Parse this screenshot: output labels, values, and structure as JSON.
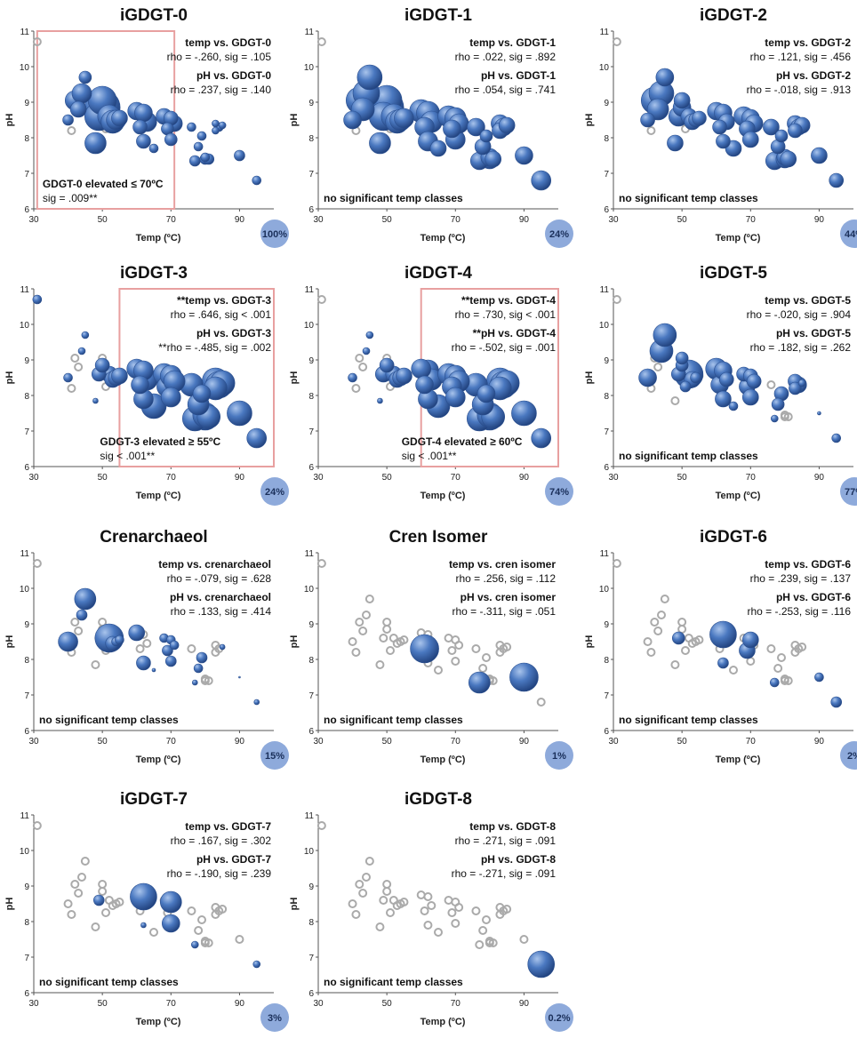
{
  "axes": {
    "xlabel": "Temp (ºC)",
    "ylabel": "pH",
    "xlim": [
      30,
      100
    ],
    "ylim": [
      6,
      11
    ],
    "xticks": [
      "30",
      "50",
      "70",
      "90"
    ],
    "yticks": [
      "6",
      "7",
      "8",
      "9",
      "10",
      "11"
    ]
  },
  "colors": {
    "bubble": "#3f6eb5",
    "hollow": "#aaaaaa",
    "badge": "#8eaadb",
    "box": "#e8a0a0"
  },
  "chart_data": {
    "type": "scatter",
    "description_points": "shared samples: temperature (x) vs pH (y)",
    "x": [
      31,
      40,
      41,
      42,
      43,
      44,
      45,
      48,
      49,
      50,
      50,
      51,
      52,
      53,
      54,
      55,
      60,
      61,
      62,
      62,
      63,
      65,
      68,
      69,
      70,
      70,
      71,
      76,
      77,
      78,
      79,
      80,
      80,
      81,
      83,
      83,
      84,
      85,
      90,
      95
    ],
    "y": [
      10.7,
      8.5,
      8.2,
      9.05,
      8.8,
      9.25,
      9.7,
      7.85,
      8.6,
      8.85,
      9.05,
      8.25,
      8.6,
      8.45,
      8.5,
      8.55,
      8.75,
      8.3,
      7.9,
      8.7,
      8.45,
      7.7,
      8.6,
      8.25,
      7.95,
      8.55,
      8.4,
      8.3,
      7.35,
      7.75,
      8.05,
      7.4,
      7.45,
      7.4,
      8.4,
      8.2,
      8.3,
      8.35,
      7.5,
      6.8
    ],
    "panels": [
      {
        "title": "iGDGT-0",
        "badge": "100%",
        "stats": [
          {
            "line1": "temp vs. GDGT-0",
            "line2": "rho = -.260, sig = .105"
          },
          {
            "line1": "pH vs. GDGT-0",
            "line2": "rho = .237, sig = .140"
          }
        ],
        "note": [
          "GDGT-0 elevated ≤ 70ºC",
          "sig = .009**"
        ],
        "box": [
          31,
          71
        ],
        "sizes": [
          0,
          6,
          0,
          11,
          9,
          11,
          7,
          12,
          16,
          20,
          16,
          0,
          13,
          13,
          11,
          9,
          10,
          8,
          8,
          10,
          11,
          5,
          9,
          7,
          7,
          8,
          9,
          5,
          6,
          5,
          5,
          6,
          5,
          6,
          4,
          4,
          5,
          4,
          6,
          5
        ]
      },
      {
        "title": "iGDGT-1",
        "badge": "24%",
        "stats": [
          {
            "line1": "temp vs. GDGT-1",
            "line2": "rho = .022, sig = .892"
          },
          {
            "line1": "pH vs. GDGT-1",
            "line2": "rho = .054, sig = .741"
          }
        ],
        "note": [
          "no significant temp classes"
        ],
        "sizes": [
          0,
          10,
          0,
          15,
          13,
          15,
          14,
          12,
          16,
          19,
          17,
          0,
          14,
          13,
          12,
          11,
          13,
          11,
          11,
          13,
          12,
          9,
          12,
          10,
          11,
          12,
          11,
          10,
          10,
          9,
          7,
          11,
          10,
          9,
          10,
          9,
          10,
          9,
          10,
          11
        ]
      },
      {
        "title": "iGDGT-2",
        "badge": "44%",
        "stats": [
          {
            "line1": "temp vs. GDGT-2",
            "line2": "rho = .121, sig = .456"
          },
          {
            "line1": "pH vs. GDGT-2",
            "line2": "rho = -.018, sig = .913"
          }
        ],
        "note": [
          "no significant temp classes"
        ],
        "sizes": [
          0,
          8,
          0,
          15,
          12,
          14,
          10,
          9,
          11,
          10,
          9,
          0,
          9,
          9,
          8,
          8,
          10,
          8,
          8,
          10,
          9,
          9,
          11,
          9,
          9,
          10,
          10,
          9,
          10,
          8,
          7,
          10,
          9,
          9,
          9,
          8,
          9,
          9,
          9,
          8
        ]
      },
      {
        "title": "iGDGT-3",
        "badge": "24%",
        "stats": [
          {
            "line1": "**temp vs. GDGT-3",
            "line2": "rho = .646, sig < .001"
          },
          {
            "line1": "pH vs. GDGT-3",
            "line2": "**rho = -.485, sig = .002"
          }
        ],
        "note": [
          "GDGT-3 elevated ≥ 55ºC",
          "sig < .001**"
        ],
        "box": [
          55,
          100
        ],
        "sizes": [
          5,
          5,
          0,
          0,
          0,
          4,
          4,
          3,
          8,
          8,
          0,
          0,
          9,
          9,
          9,
          9,
          11,
          10,
          11,
          11,
          12,
          14,
          12,
          12,
          11,
          12,
          12,
          13,
          14,
          12,
          10,
          15,
          14,
          13,
          15,
          13,
          15,
          14,
          14,
          11
        ]
      },
      {
        "title": "iGDGT-4",
        "badge": "74%",
        "stats": [
          {
            "line1": "**temp vs. GDGT-4",
            "line2": "rho = .730, sig < .001"
          },
          {
            "line1": "**pH vs. GDGT-4",
            "line2": "rho = -.502, sig = .001"
          }
        ],
        "note": [
          "GDGT-4 elevated ≥ 60ºC",
          "sig < .001**"
        ],
        "box": [
          60,
          100
        ],
        "sizes": [
          0,
          5,
          0,
          0,
          0,
          4,
          4,
          3,
          9,
          8,
          0,
          0,
          9,
          9,
          9,
          9,
          11,
          10,
          11,
          12,
          12,
          13,
          12,
          11,
          11,
          12,
          12,
          13,
          14,
          12,
          10,
          15,
          14,
          13,
          15,
          13,
          15,
          14,
          14,
          11
        ]
      },
      {
        "title": "iGDGT-5",
        "badge": "77%",
        "stats": [
          {
            "line1": "temp vs. GDGT-5",
            "line2": "rho = -.020, sig = .904"
          },
          {
            "line1": "pH vs. GDGT-5",
            "line2": "rho = .182, sig = .262"
          }
        ],
        "note": [
          "no significant temp classes"
        ],
        "sizes": [
          0,
          10,
          0,
          0,
          0,
          13,
          13,
          0,
          8,
          7,
          7,
          6,
          16,
          9,
          6,
          0,
          12,
          10,
          9,
          10,
          8,
          5,
          8,
          9,
          9,
          8,
          8,
          0,
          4,
          7,
          8,
          0,
          0,
          0,
          8,
          7,
          9,
          4,
          2,
          5
        ]
      },
      {
        "title": "Crenarchaeol",
        "badge": "15%",
        "stats": [
          {
            "line1": "temp vs. crenarchaeol",
            "line2": "rho = -.079, sig = .628"
          },
          {
            "line1": "pH vs. crenarchaeol",
            "line2": "rho = .133, sig = .414"
          }
        ],
        "note": [
          "no significant temp classes"
        ],
        "sizes": [
          0,
          11,
          0,
          0,
          0,
          6,
          12,
          0,
          0,
          0,
          0,
          0,
          16,
          8,
          5,
          5,
          9,
          0,
          8,
          0,
          0,
          2,
          5,
          6,
          6,
          5,
          5,
          0,
          3,
          5,
          6,
          0,
          0,
          0,
          0,
          0,
          0,
          3,
          1,
          3
        ]
      },
      {
        "title": "Cren Isomer",
        "badge": "1%",
        "stats": [
          {
            "line1": "temp vs. cren isomer",
            "line2": "rho = .256, sig = .112"
          },
          {
            "line1": "pH vs. cren isomer",
            "line2": "rho = -.311, sig = .051"
          }
        ],
        "note": [
          "no significant temp classes"
        ],
        "sizes": [
          0,
          0,
          0,
          0,
          0,
          0,
          0,
          0,
          0,
          0,
          0,
          0,
          0,
          0,
          0,
          0,
          0,
          16,
          0,
          0,
          0,
          0,
          0,
          0,
          0,
          0,
          0,
          0,
          12,
          0,
          0,
          0,
          0,
          0,
          0,
          0,
          0,
          0,
          16,
          0
        ]
      },
      {
        "title": "iGDGT-6",
        "badge": "2%",
        "stats": [
          {
            "line1": "temp vs. GDGT-6",
            "line2": "rho = .239, sig = .137"
          },
          {
            "line1": "pH vs. GDGT-6",
            "line2": "rho = -.253, sig = .116"
          }
        ],
        "note": [
          "no significant temp classes"
        ],
        "sizes": [
          0,
          0,
          0,
          0,
          0,
          0,
          0,
          0,
          7,
          0,
          0,
          0,
          0,
          0,
          0,
          0,
          0,
          0,
          6,
          15,
          0,
          0,
          0,
          9,
          0,
          9,
          0,
          0,
          5,
          0,
          0,
          0,
          0,
          0,
          0,
          0,
          0,
          0,
          5,
          6
        ]
      },
      {
        "title": "iGDGT-7",
        "badge": "3%",
        "stats": [
          {
            "line1": "temp vs. GDGT-7",
            "line2": "rho = .167, sig = .302"
          },
          {
            "line1": "pH vs. GDGT-7",
            "line2": "rho = -.190, sig = .239"
          }
        ],
        "note": [
          "no significant temp classes"
        ],
        "sizes": [
          0,
          0,
          0,
          0,
          0,
          0,
          0,
          0,
          6,
          0,
          0,
          0,
          0,
          0,
          0,
          0,
          0,
          0,
          3,
          15,
          0,
          0,
          0,
          0,
          10,
          12,
          0,
          0,
          4,
          0,
          0,
          0,
          0,
          0,
          0,
          0,
          0,
          0,
          0,
          4
        ]
      },
      {
        "title": "iGDGT-8",
        "badge": "0.2%",
        "stats": [
          {
            "line1": "temp vs. GDGT-8",
            "line2": "rho = .271, sig = .091"
          },
          {
            "line1": "pH vs. GDGT-8",
            "line2": "rho = -.271, sig = .091"
          }
        ],
        "note": [
          "no significant temp classes"
        ],
        "sizes": [
          0,
          0,
          0,
          0,
          0,
          0,
          0,
          0,
          0,
          0,
          0,
          0,
          0,
          0,
          0,
          0,
          0,
          0,
          0,
          0,
          0,
          0,
          0,
          0,
          0,
          0,
          0,
          0,
          0,
          0,
          0,
          0,
          0,
          0,
          0,
          0,
          0,
          0,
          0,
          15
        ]
      }
    ]
  }
}
